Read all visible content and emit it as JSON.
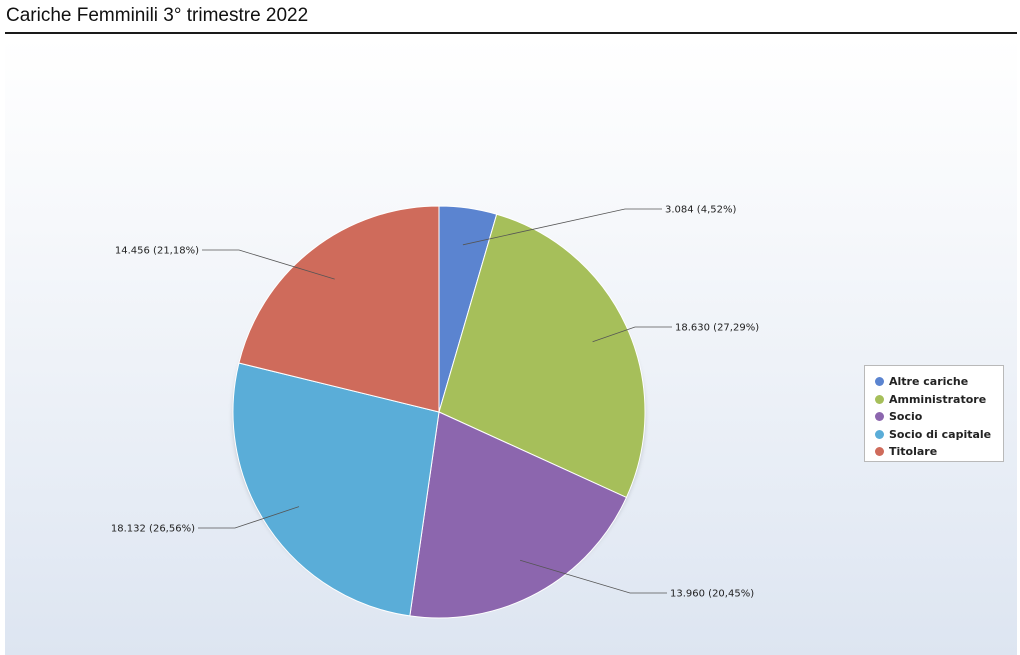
{
  "page": {
    "title": "Cariche Femminili 3° trimestre 2022"
  },
  "chart_data": {
    "type": "pie",
    "title": "",
    "categories": [
      "Altre cariche",
      "Amministratore",
      "Socio",
      "Socio di capitale",
      "Titolare"
    ],
    "values": [
      3084,
      18630,
      13960,
      18132,
      14456
    ],
    "percentages": [
      4.52,
      27.29,
      20.45,
      26.56,
      21.18
    ],
    "labels": [
      "3.084 (4,52%)",
      "18.630 (27,29%)",
      "13.960 (20,45%)",
      "18.132 (26,56%)",
      "14.456 (21,18%)"
    ],
    "colors": [
      "#5b84d0",
      "#a6bf5a",
      "#8c66ae",
      "#5aadd8",
      "#cf6b5b"
    ],
    "start_angle_deg": 0,
    "direction": "clockwise",
    "legend_position": "right"
  }
}
